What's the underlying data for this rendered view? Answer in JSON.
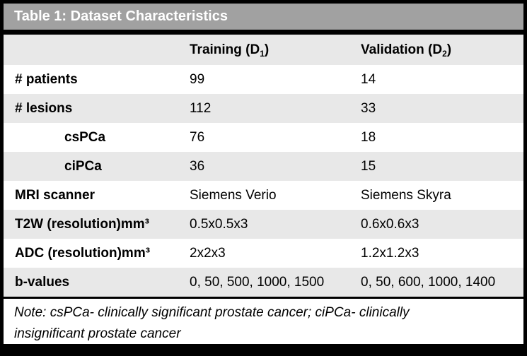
{
  "title": "Table 1: Dataset Characteristics",
  "columns": [
    {
      "prefix": "Training (D",
      "sub": "1",
      "suffix": ")"
    },
    {
      "prefix": "Validation (D",
      "sub": "2",
      "suffix": ")"
    }
  ],
  "rows": [
    {
      "label": "# patients",
      "indent": false,
      "training": "99",
      "validation": "14"
    },
    {
      "label": "# lesions",
      "indent": false,
      "training": "112",
      "validation": "33"
    },
    {
      "label": "csPCa",
      "indent": true,
      "training": "76",
      "validation": "18"
    },
    {
      "label": "ciPCa",
      "indent": true,
      "training": "36",
      "validation": "15"
    },
    {
      "label": "MRI scanner",
      "indent": false,
      "training": "Siemens Verio",
      "validation": "Siemens Skyra"
    },
    {
      "label": "T2W (resolution)mm³",
      "indent": false,
      "training": "0.5x0.5x3",
      "validation": "0.6x0.6x3"
    },
    {
      "label": "ADC (resolution)mm³",
      "indent": false,
      "training": "2x2x3",
      "validation": "1.2x1.2x3"
    },
    {
      "label": "b-values",
      "indent": false,
      "training": "0, 50, 500, 1000, 1500",
      "validation": "0, 50, 600, 1000, 1400"
    }
  ],
  "note": "Note: csPCa- clinically significant prostate cancer; ciPCa- clinically insignificant prostate cancer",
  "colors": {
    "title_bar": "#a1a1a1",
    "title_text": "#ffffff",
    "shaded_row": "#e8e8e8",
    "row_bg": "#ffffff",
    "border": "#000000",
    "text": "#000000"
  }
}
